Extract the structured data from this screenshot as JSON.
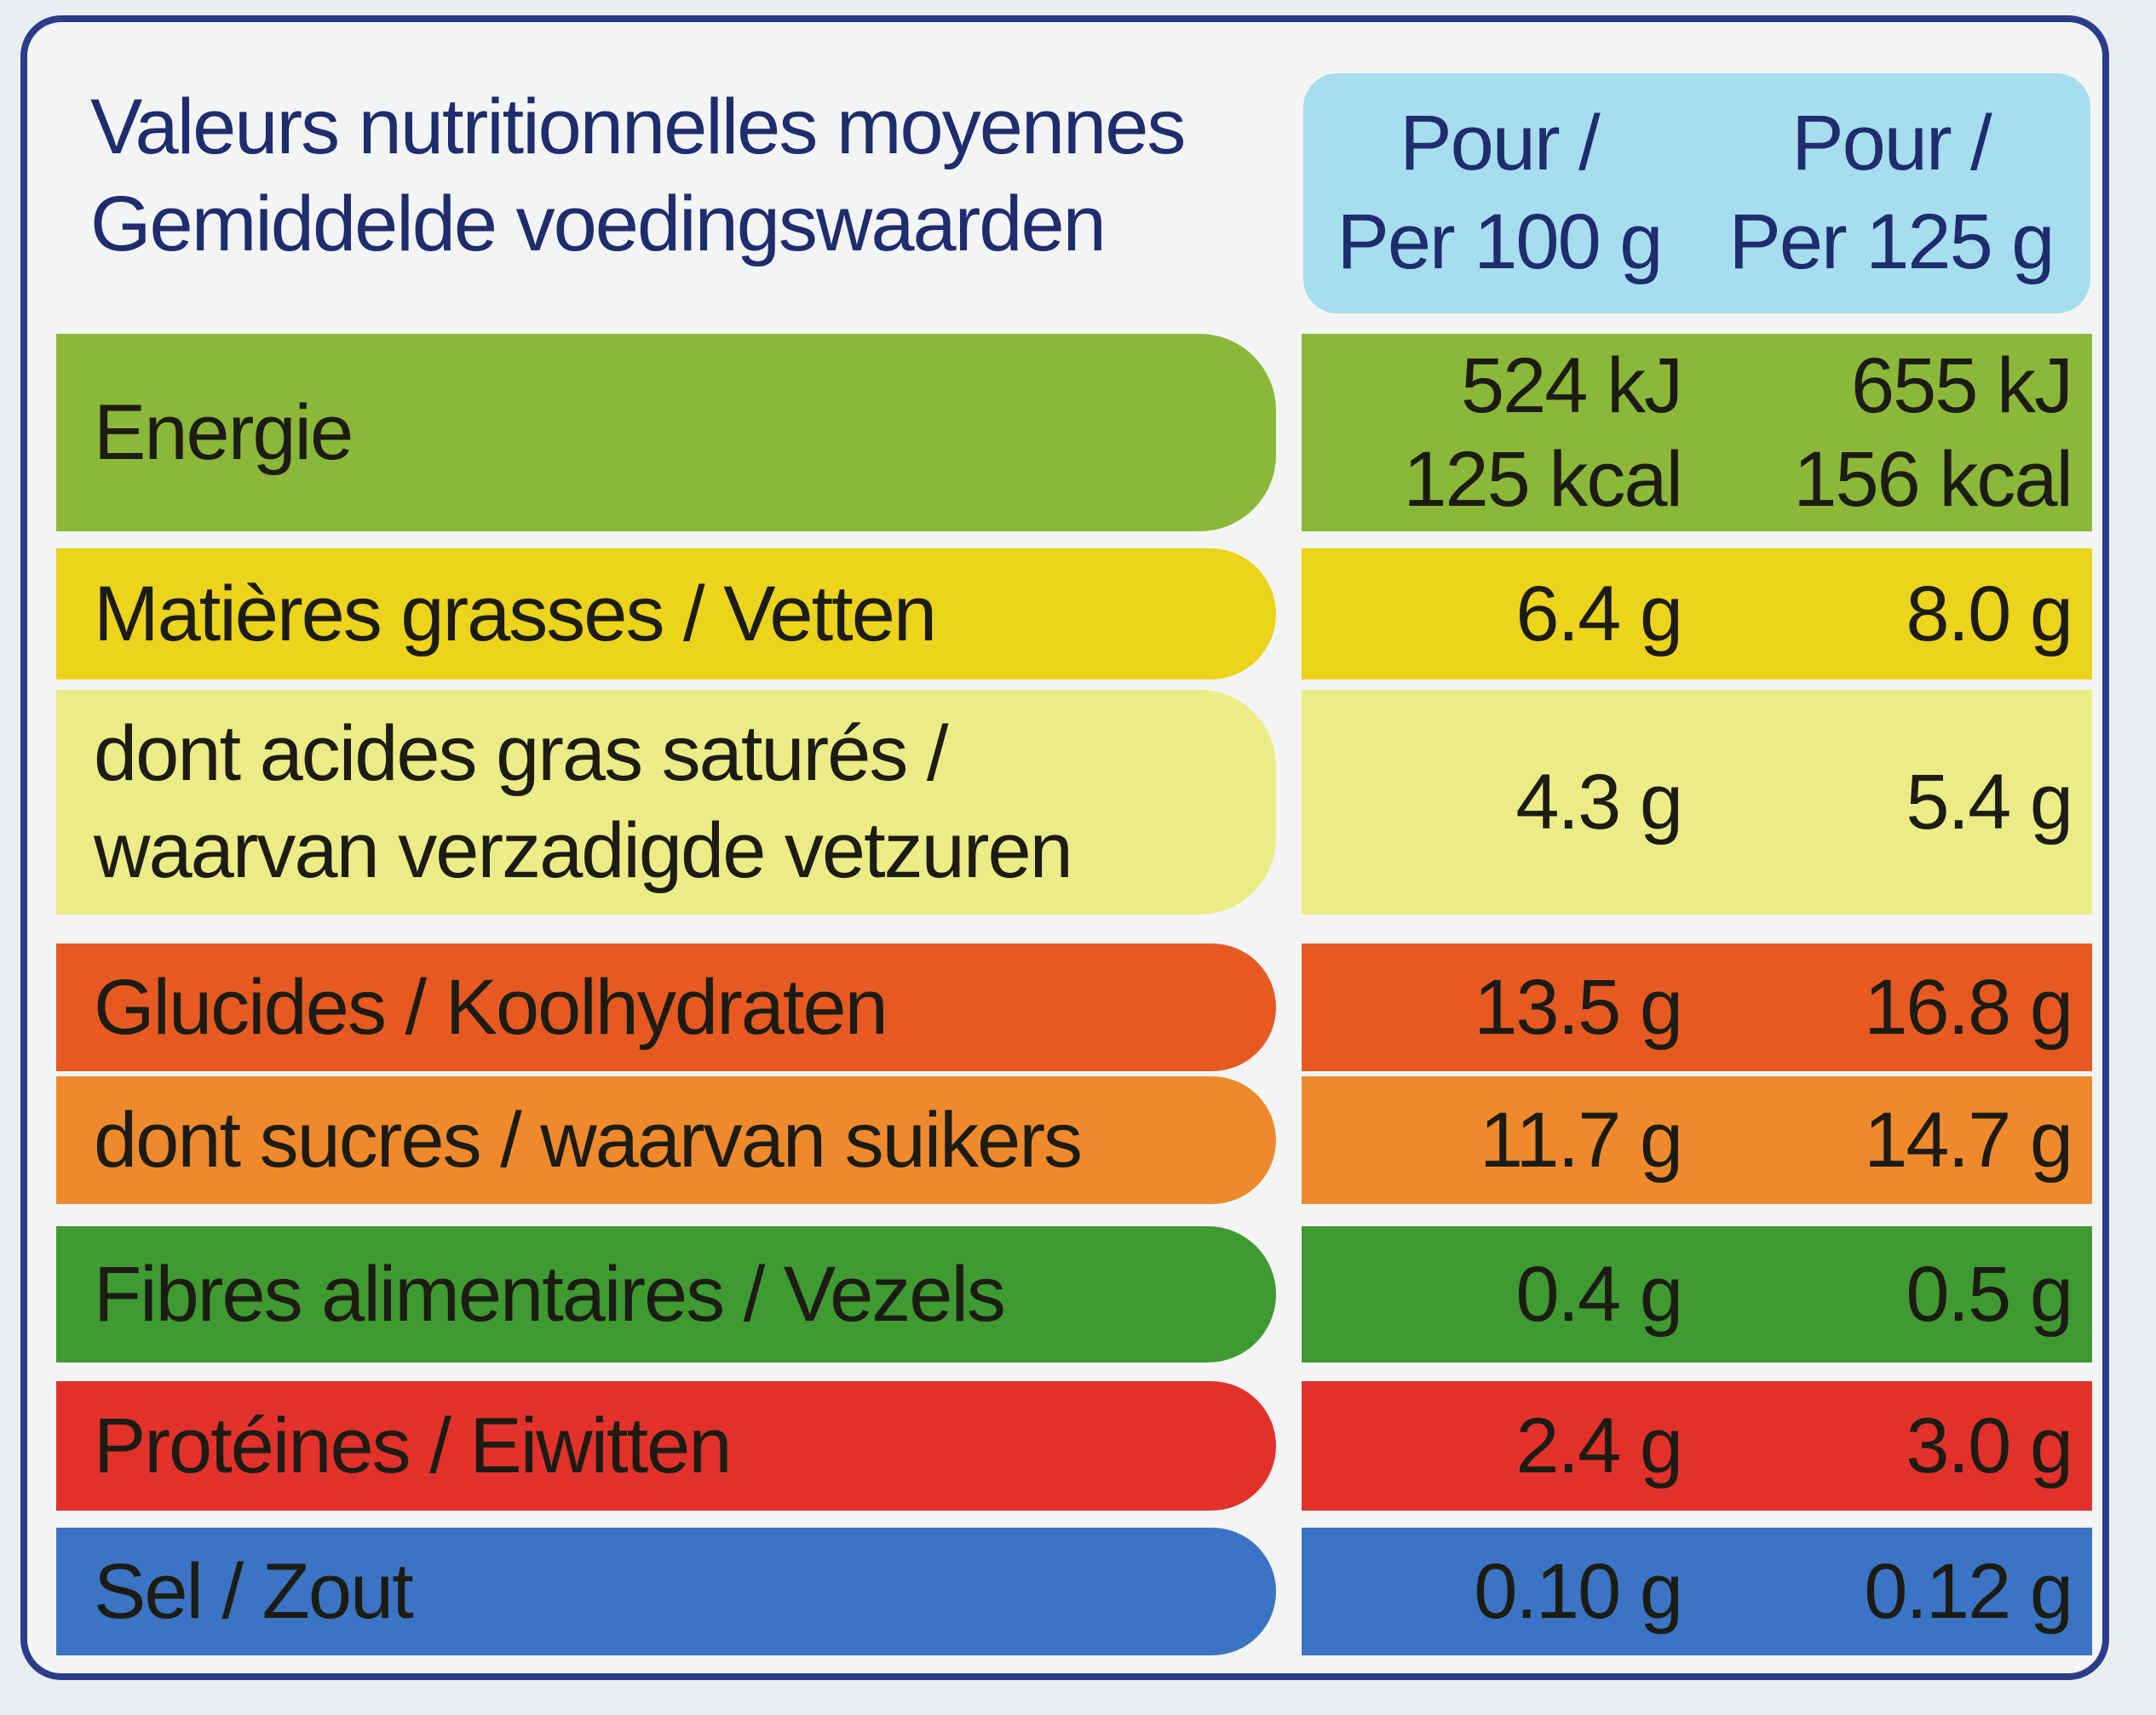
{
  "header": {
    "title_line1": "Valeurs nutritionnelles moyennes",
    "title_line2": "Gemiddelde voedingswaarden",
    "col1_line1": "Pour /",
    "col1_line2": "Per 100 g",
    "col2_line1": "Pour /",
    "col2_line2": "Per 125 g"
  },
  "rows": [
    {
      "label_line1": "Energie",
      "v100_line1": "524 kJ",
      "v100_line2": "125 kcal",
      "v125_line1": "655 kJ",
      "v125_line2": "156 kcal",
      "color_label": "#8cb83a",
      "color_value": "#8cb83a"
    },
    {
      "label_line1": "Matières grasses / Vetten",
      "v100_line1": "6.4 g",
      "v125_line1": "8.0 g",
      "color_label": "#ecd31c",
      "color_value": "#ecd31c"
    },
    {
      "label_line1": "dont acides gras saturés /",
      "label_line2": "waarvan verzadigde vetzuren",
      "v100_line1": "4.3 g",
      "v125_line1": "5.4 g",
      "color_label": "#ecec86",
      "color_value": "#ecec86"
    },
    {
      "label_line1": "Glucides / Koolhydraten",
      "v100_line1": "13.5 g",
      "v125_line1": "16.8 g",
      "color_label": "#e65a22",
      "color_value": "#e65a22"
    },
    {
      "label_line1": "dont sucres / waarvan suikers",
      "v100_line1": "11.7 g",
      "v125_line1": "14.7 g",
      "color_label": "#ef8a2c",
      "color_value": "#ef8a2c"
    },
    {
      "label_line1": "Fibres alimentaires / Vezels",
      "v100_line1": "0.4 g",
      "v125_line1": "0.5 g",
      "color_label": "#3f9a32",
      "color_value": "#3f9a32"
    },
    {
      "label_line1": "Protéines / Eiwitten",
      "v100_line1": "2.4 g",
      "v125_line1": "3.0 g",
      "color_label": "#e2312b",
      "color_value": "#e2312b"
    },
    {
      "label_line1": "Sel / Zout",
      "v100_line1": "0.10 g",
      "v125_line1": "0.12 g",
      "color_label": "#3b74c4",
      "color_value": "#3b74c4"
    }
  ]
}
